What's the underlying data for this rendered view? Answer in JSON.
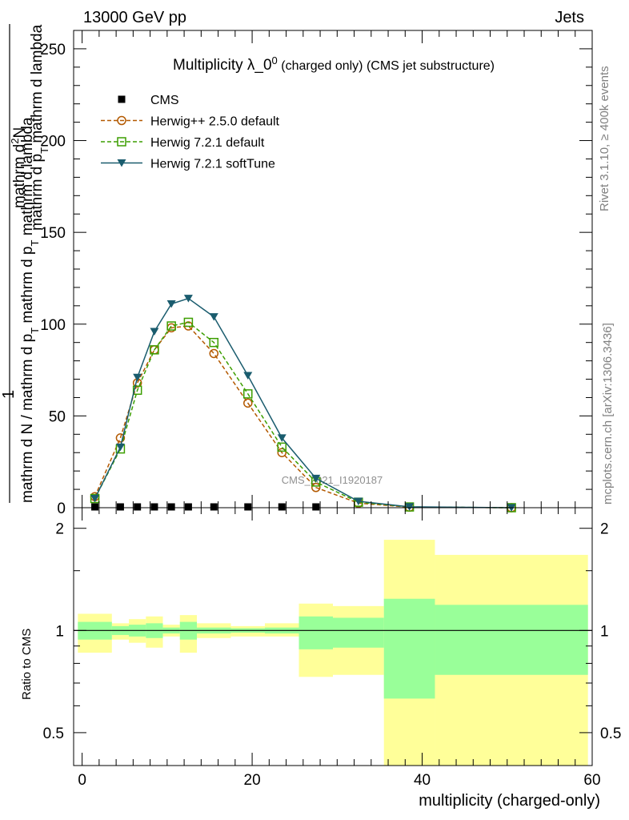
{
  "header": {
    "energy": "13000 GeV pp",
    "group": "Jets"
  },
  "side": {
    "rivet": "Rivet 3.1.10, ≥ 400k events",
    "mcplots": "mcplots.cern.ch [arXiv:1306.3436]"
  },
  "watermark": "CMS_2021_I1920187",
  "chart_data": [
    {
      "type": "line",
      "title": "Multiplicity λ_0",
      "title_sup": "0",
      "title_note": "(charged only) (CMS jet substructure)",
      "ylabel": "1/mathrm d N / mathrm d p_T mathrm d p_T mathrm d lambda  mathrm d^2N / mathrm d p_T mathrm d lambda",
      "ylabel_top": "mathrm d",
      "ylabel_top_sup": "2",
      "ylabel_top_tail": "N",
      "ylabel_mid": "mathrm d p",
      "ylabel_mid_sub": "T",
      "ylabel_mid_tail": " mathrm d lambda",
      "ylabel_one": "1",
      "ylabel_bot_a": "mathrm d N / mathrm d p",
      "ylabel_bot_sub": "T",
      "ylabel_bot_b": "mathrm d p",
      "ylabel_bot_sub2": "T",
      "ylabel_bot_tail": "mathrm d lambda",
      "xlim": [
        -1,
        60
      ],
      "ylim": [
        0,
        260
      ],
      "yticks": [
        0,
        50,
        100,
        150,
        200,
        250
      ],
      "legend_position": "top-left",
      "series": [
        {
          "name": "CMS",
          "color": "#000000",
          "marker": "square-filled",
          "x": [
            1.5,
            4.5,
            6.5,
            8.5,
            10.5,
            12.5,
            15.5,
            19.5,
            23.5,
            27.5
          ],
          "y": [
            0,
            0,
            0,
            0,
            0,
            0,
            0,
            0,
            0,
            0
          ]
        },
        {
          "name": "Herwig++ 2.5.0 default",
          "color": "#b35900",
          "marker": "circle-open",
          "dash": true,
          "x": [
            1.5,
            4.5,
            6.5,
            8.5,
            10.5,
            12.5,
            15.5,
            19.5,
            23.5,
            27.5,
            32.5,
            38.5,
            50.5
          ],
          "y": [
            6,
            38,
            68,
            86,
            98,
            99,
            84,
            57,
            30,
            11,
            2.5,
            0.3,
            0
          ]
        },
        {
          "name": "Herwig 7.2.1 default",
          "color": "#3c9e00",
          "marker": "square-open",
          "dash": true,
          "x": [
            1.5,
            4.5,
            6.5,
            8.5,
            10.5,
            12.5,
            15.5,
            19.5,
            23.5,
            27.5,
            32.5,
            38.5,
            50.5
          ],
          "y": [
            5,
            32,
            64,
            86,
            99,
            101,
            90,
            62,
            33,
            14,
            3,
            0.4,
            0
          ]
        },
        {
          "name": "Herwig 7.2.1 softTune",
          "color": "#1a5c6e",
          "marker": "triangle-down-filled",
          "dash": false,
          "x": [
            1.5,
            4.5,
            6.5,
            8.5,
            10.5,
            12.5,
            15.5,
            19.5,
            23.5,
            27.5,
            32.5,
            38.5,
            50.5
          ],
          "y": [
            5,
            33,
            71,
            96,
            111,
            114,
            104,
            72,
            38,
            16,
            3.5,
            0.5,
            0
          ]
        }
      ]
    },
    {
      "type": "area",
      "ylabel": "Ratio to CMS",
      "xlabel": "multiplicity (charged-only)",
      "xlim": [
        -1,
        60
      ],
      "xticks": [
        0,
        20,
        40,
        60
      ],
      "ylim": [
        0.4,
        2.3
      ],
      "yticks": [
        0.5,
        1,
        2
      ],
      "ytick_labels": [
        "0.5",
        "1",
        "2"
      ],
      "band_colors": {
        "outer": "#ffff99",
        "inner": "#99ff99"
      },
      "bins": [
        {
          "lo": -0.5,
          "hi": 3.5,
          "outer": [
            0.86,
            1.12
          ],
          "inner": [
            0.94,
            1.06
          ]
        },
        {
          "lo": 3.5,
          "hi": 5.5,
          "outer": [
            0.94,
            1.05
          ],
          "inner": [
            0.97,
            1.03
          ]
        },
        {
          "lo": 5.5,
          "hi": 7.5,
          "outer": [
            0.92,
            1.08
          ],
          "inner": [
            0.96,
            1.04
          ]
        },
        {
          "lo": 7.5,
          "hi": 9.5,
          "outer": [
            0.89,
            1.1
          ],
          "inner": [
            0.95,
            1.05
          ]
        },
        {
          "lo": 9.5,
          "hi": 11.5,
          "outer": [
            0.96,
            1.04
          ],
          "inner": [
            0.98,
            1.02
          ]
        },
        {
          "lo": 11.5,
          "hi": 13.5,
          "outer": [
            0.86,
            1.11
          ],
          "inner": [
            0.94,
            1.06
          ]
        },
        {
          "lo": 13.5,
          "hi": 17.5,
          "outer": [
            0.95,
            1.05
          ],
          "inner": [
            0.98,
            1.02
          ]
        },
        {
          "lo": 17.5,
          "hi": 21.5,
          "outer": [
            0.96,
            1.03
          ],
          "inner": [
            0.985,
            1.015
          ]
        },
        {
          "lo": 21.5,
          "hi": 25.5,
          "outer": [
            0.96,
            1.05
          ],
          "inner": [
            0.98,
            1.02
          ]
        },
        {
          "lo": 25.5,
          "hi": 29.5,
          "outer": [
            0.73,
            1.2
          ],
          "inner": [
            0.88,
            1.1
          ]
        },
        {
          "lo": 29.5,
          "hi": 35.5,
          "outer": [
            0.74,
            1.18
          ],
          "inner": [
            0.89,
            1.09
          ]
        },
        {
          "lo": 35.5,
          "hi": 41.5,
          "outer": [
            0.4,
            1.85
          ],
          "inner": [
            0.63,
            1.24
          ]
        },
        {
          "lo": 41.5,
          "hi": 59.5,
          "outer": [
            0.4,
            1.67
          ],
          "inner": [
            0.74,
            1.19
          ]
        }
      ]
    }
  ]
}
